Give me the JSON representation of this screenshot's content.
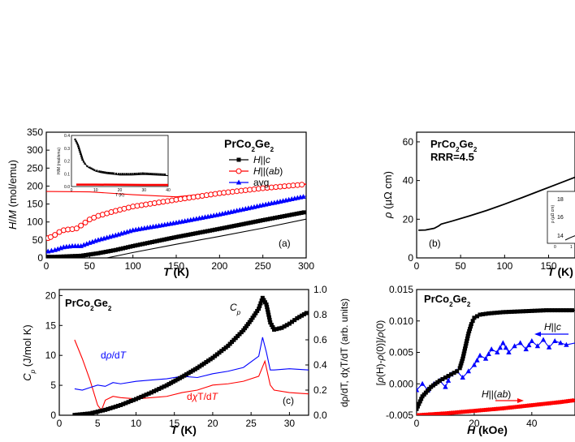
{
  "chart_data": [
    {
      "id": "a",
      "type": "line",
      "title": "PrCo2Ge2",
      "panel_label": "(a)",
      "xlabel": "T (K)",
      "ylabel": "H/M (mol/emu)",
      "xlim": [
        0,
        300
      ],
      "ylim": [
        0,
        350
      ],
      "xticks": [
        "0",
        "50",
        "100",
        "150",
        "200",
        "250",
        "300"
      ],
      "yticks": [
        "0",
        "50",
        "100",
        "150",
        "200",
        "250",
        "300",
        "350"
      ],
      "legend_position": "top-right",
      "series": [
        {
          "name": "H||c",
          "color": "#000000",
          "marker": "square",
          "x": [
            2,
            10,
            20,
            30,
            40,
            60,
            80,
            100,
            150,
            200,
            250,
            300
          ],
          "y": [
            3,
            3,
            4,
            5,
            6,
            13,
            22,
            33,
            58,
            81,
            105,
            128
          ]
        },
        {
          "name": "H||(ab)",
          "color": "#ff0000",
          "marker": "open-circle",
          "x": [
            2,
            5,
            10,
            15,
            20,
            25,
            30,
            35,
            40,
            50,
            60,
            80,
            100,
            150,
            200,
            250,
            300
          ],
          "y": [
            55,
            58,
            64,
            72,
            77,
            79,
            80,
            82,
            90,
            107,
            117,
            131,
            143,
            162,
            180,
            194,
            205
          ]
        },
        {
          "name": "avg",
          "color": "#0000ff",
          "marker": "triangle",
          "x": [
            2,
            10,
            20,
            30,
            40,
            50,
            60,
            80,
            100,
            150,
            200,
            250,
            300
          ],
          "y": [
            18,
            22,
            30,
            33,
            33,
            42,
            50,
            63,
            77,
            98,
            121,
            147,
            172
          ]
        },
        {
          "name": "",
          "color": "#ff0000",
          "marker": "none",
          "x": [
            0,
            50,
            100,
            150,
            200,
            250,
            300
          ],
          "y": [
            185,
            184,
            176,
            170,
            182,
            196,
            206
          ]
        },
        {
          "name": "",
          "color": "#000000",
          "marker": "none",
          "x": [
            70,
            100,
            150,
            200,
            250,
            300
          ],
          "y": [
            0,
            15,
            38,
            60,
            83,
            108
          ]
        }
      ],
      "inset": {
        "xlabel": "T (K)",
        "ylabel": "H/M (mol/emu)",
        "xlim": [
          0,
          40
        ],
        "ylim": [
          0,
          0.4
        ],
        "xticks": [
          "0",
          "10",
          "20",
          "30",
          "40"
        ],
        "yticks": [
          "0.0",
          "0.1",
          "0.2",
          "0.3",
          "0.4"
        ],
        "series": [
          {
            "name": "",
            "color": "#000000",
            "x": [
              2,
              3,
              4,
              5,
              6,
              7,
              8,
              10,
              12,
              15,
              18,
              20,
              25,
              30,
              35,
              40
            ],
            "y": [
              0.36,
              0.32,
              0.26,
              0.2,
              0.17,
              0.15,
              0.14,
              0.12,
              0.11,
              0.1,
              0.095,
              0.09,
              0.09,
              0.095,
              0.09,
              0.085
            ]
          },
          {
            "name": "",
            "color": "#ff0000",
            "x": [
              2,
              10,
              20,
              30,
              40
            ],
            "y": [
              0.015,
              0.015,
              0.014,
              0.013,
              0.013
            ]
          }
        ]
      }
    },
    {
      "id": "b",
      "type": "line",
      "title": "PrCo2Ge2",
      "subtitle": "RRR=4.5",
      "panel_label": "(b)",
      "xlabel": "T (K)",
      "ylabel": "ρ (μΩ cm)",
      "xlim": [
        0,
        180
      ],
      "ylim": [
        0,
        65
      ],
      "xticks": [
        "0",
        "50",
        "100",
        "150"
      ],
      "yticks": [
        "0",
        "20",
        "40",
        "60"
      ],
      "series": [
        {
          "name": "",
          "color": "#000000",
          "x": [
            2,
            10,
            20,
            25,
            28,
            40,
            60,
            80,
            100,
            120,
            140,
            160,
            180
          ],
          "y": [
            14.3,
            14.4,
            15.3,
            16.5,
            17.5,
            19,
            21.7,
            24.6,
            27.8,
            31.2,
            34.7,
            38.2,
            41.7
          ]
        }
      ],
      "inset": {
        "ylabel": "ρ (μΩ cm)",
        "yticks": [
          "14",
          "16",
          "18"
        ],
        "xticks": [
          "0",
          "1"
        ]
      }
    },
    {
      "id": "c",
      "type": "line",
      "title": "PrCo2Ge2",
      "panel_label": "(c)",
      "xlabel": "T (K)",
      "ylabel": "Cp (J/mol K)",
      "y2label": "dρ/dT, dχT/dT (arb. units)",
      "xlim": [
        0,
        32.5
      ],
      "ylim": [
        0,
        21
      ],
      "y2lim": [
        0,
        1.0
      ],
      "xticks": [
        "0",
        "5",
        "10",
        "15",
        "20",
        "25",
        "30"
      ],
      "yticks": [
        "0",
        "5",
        "10",
        "15",
        "20"
      ],
      "y2ticks": [
        "0.0",
        "0.2",
        "0.4",
        "0.6",
        "0.8",
        "1.0"
      ],
      "annotations": [
        "Cp",
        "dρ/dT",
        "dχT/dT"
      ],
      "series": [
        {
          "name": "Cp",
          "color": "#000000",
          "marker": "square",
          "axis": "left",
          "x": [
            2,
            4,
            6,
            8,
            10,
            12,
            14,
            16,
            18,
            20,
            22,
            24,
            25,
            26,
            26.5,
            27,
            27.5,
            28,
            29,
            30,
            31,
            32.5
          ],
          "y": [
            0.05,
            0.3,
            0.9,
            1.7,
            2.7,
            3.8,
            5,
            6.4,
            7.9,
            9.6,
            11.6,
            14.2,
            15.9,
            17.8,
            19.6,
            18.5,
            15.5,
            14.3,
            14.6,
            15.3,
            16.2,
            17.3
          ]
        },
        {
          "name": "dρ/dT",
          "color": "#0000ff",
          "marker": "none",
          "axis": "right",
          "x": [
            2,
            3,
            4,
            5,
            6,
            7,
            8,
            10,
            12,
            14,
            16,
            18,
            20,
            22,
            24,
            26,
            26.5,
            27,
            27.5,
            28,
            30,
            32.5
          ],
          "y": [
            0.21,
            0.2,
            0.22,
            0.24,
            0.23,
            0.26,
            0.25,
            0.27,
            0.28,
            0.29,
            0.31,
            0.3,
            0.33,
            0.35,
            0.38,
            0.47,
            0.62,
            0.5,
            0.36,
            0.36,
            0.37,
            0.36
          ]
        },
        {
          "name": "dχT/dT",
          "color": "#ff0000",
          "marker": "none",
          "axis": "right",
          "x": [
            2,
            3,
            4,
            5,
            5.5,
            6,
            7,
            8,
            10,
            12,
            14,
            16,
            18,
            20,
            22,
            24,
            26,
            26.8,
            27.5,
            28,
            30,
            32.5
          ],
          "y": [
            0.6,
            0.45,
            0.28,
            0.08,
            0.04,
            0.12,
            0.15,
            0.14,
            0.13,
            0.14,
            0.15,
            0.18,
            0.2,
            0.24,
            0.25,
            0.27,
            0.31,
            0.43,
            0.24,
            0.2,
            0.18,
            0.17
          ]
        }
      ]
    },
    {
      "id": "d",
      "type": "line",
      "title": "PrCo2Ge2",
      "xlabel": "H (kOe)",
      "ylabel": "[ρ(H)-ρ(0)]/ρ(0)",
      "xlim": [
        0,
        55
      ],
      "ylim": [
        -0.005,
        0.015
      ],
      "xticks": [
        "0",
        "20",
        "40"
      ],
      "yticks": [
        "-0.005",
        "0.000",
        "0.005",
        "0.010",
        "0.015"
      ],
      "annotations": [
        "H||c",
        "H||(ab)"
      ],
      "series": [
        {
          "name": "H||c (black)",
          "color": "#000000",
          "marker": "square",
          "x": [
            0,
            2,
            5,
            8,
            10,
            12,
            14,
            15,
            16,
            17,
            18,
            19,
            20,
            22,
            25,
            30,
            35,
            40,
            45,
            50,
            55
          ],
          "y": [
            -0.004,
            -0.002,
            -0.0005,
            0.0005,
            0.001,
            0.0015,
            0.002,
            0.0025,
            0.004,
            0.006,
            0.008,
            0.0095,
            0.0105,
            0.011,
            0.0112,
            0.0114,
            0.0115,
            0.0116,
            0.0117,
            0.0117,
            0.0117
          ]
        },
        {
          "name": "H||c (blue)",
          "color": "#0000ff",
          "marker": "triangle",
          "x": [
            0,
            2,
            4,
            6,
            8,
            10,
            12,
            14,
            16,
            18,
            20,
            22,
            24,
            26,
            28,
            30,
            32,
            34,
            36,
            38,
            40,
            42,
            44,
            46,
            48,
            50,
            52,
            55
          ],
          "y": [
            -0.001,
            0.0,
            -0.001,
            0.0,
            0.0005,
            -0.0005,
            0.0015,
            0.002,
            0.001,
            0.002,
            0.003,
            0.0045,
            0.004,
            0.0055,
            0.005,
            0.0065,
            0.005,
            0.006,
            0.0065,
            0.0055,
            0.0068,
            0.006,
            0.007,
            0.0058,
            0.0068,
            0.0065,
            0.0062,
            0.0065
          ]
        },
        {
          "name": "H||(ab)",
          "color": "#ff0000",
          "marker": "circle",
          "x": [
            0,
            10,
            20,
            30,
            40,
            50,
            55
          ],
          "y": [
            -0.005,
            -0.0047,
            -0.0043,
            -0.0039,
            -0.0034,
            -0.0029,
            -0.0026
          ]
        }
      ]
    }
  ]
}
